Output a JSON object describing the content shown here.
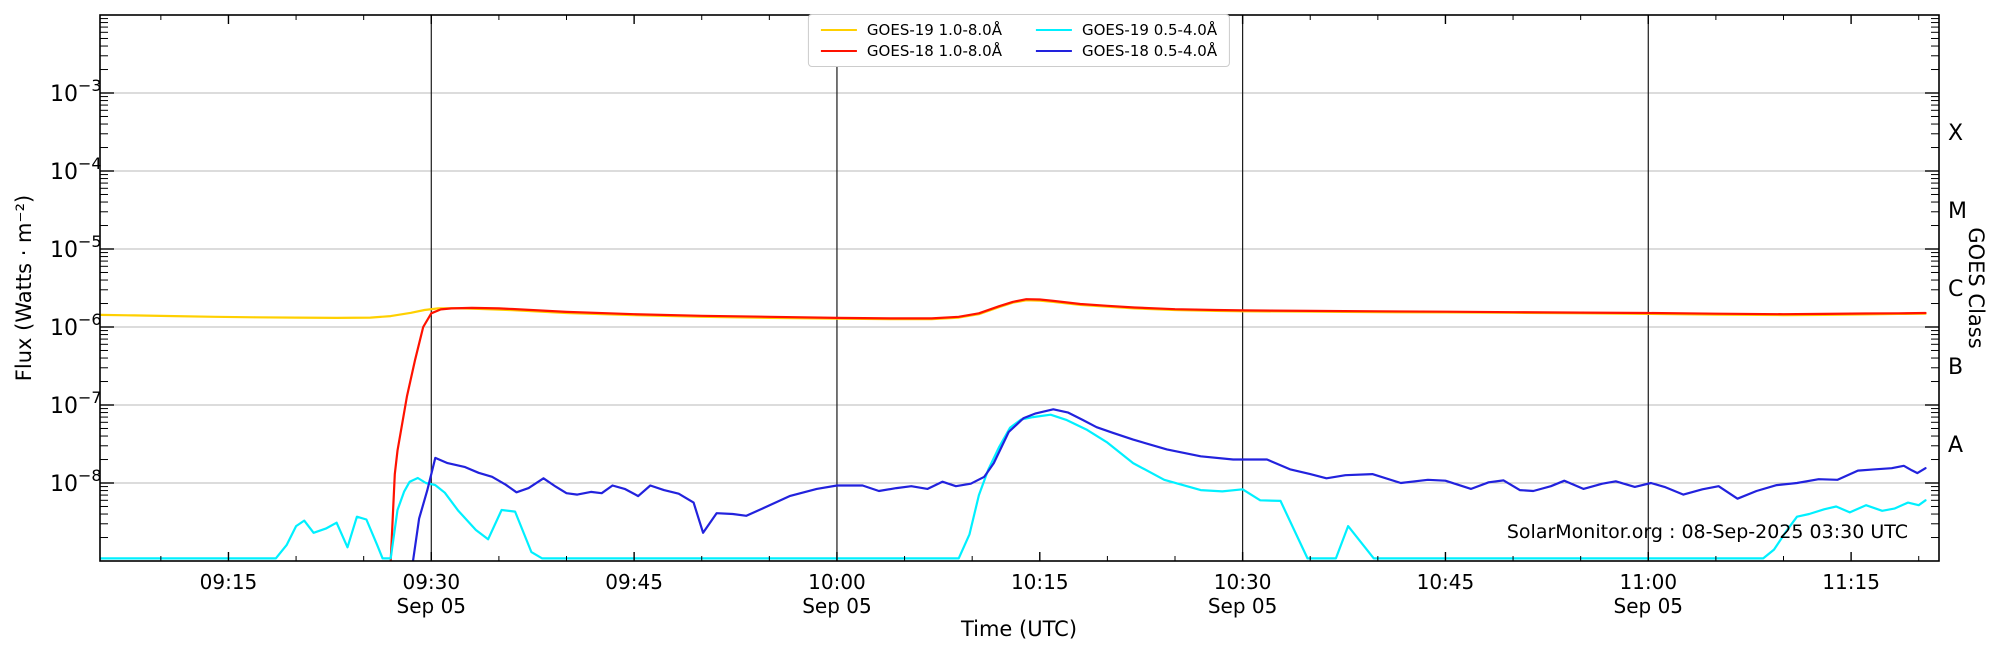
{
  "watermark": "SolarMonitor.org : 08-Sep-2025 03:30 UTC",
  "chart_data": {
    "type": "line",
    "x_axis": {
      "label": "Time (UTC)",
      "unit": "minutes after 09:00 UTC",
      "range": [
        5.5,
        141.5
      ],
      "date_label": "Sep 05",
      "major_ticks": [
        {
          "t": 15,
          "label": "09:15"
        },
        {
          "t": 30,
          "label": "09:30",
          "date": "Sep 05"
        },
        {
          "t": 45,
          "label": "09:45"
        },
        {
          "t": 60,
          "label": "10:00",
          "date": "Sep 05"
        },
        {
          "t": 75,
          "label": "10:15"
        },
        {
          "t": 90,
          "label": "10:30",
          "date": "Sep 05"
        },
        {
          "t": 105,
          "label": "10:45"
        },
        {
          "t": 120,
          "label": "11:00",
          "date": "Sep 05"
        },
        {
          "t": 135,
          "label": "11:15"
        }
      ],
      "minor_tick_step": 5,
      "vertical_gridlines": [
        30,
        60,
        90,
        120
      ]
    },
    "y_axis": {
      "label": "Flux (Watts · m⁻²)",
      "scale": "log",
      "range": [
        1e-09,
        0.01
      ],
      "tick_exponents": [
        -3,
        -4,
        -5,
        -6,
        -7,
        -8
      ]
    },
    "right_axis": {
      "label": "GOES Class",
      "classes": [
        {
          "label": "X",
          "mid_exponent": -3.5
        },
        {
          "label": "M",
          "mid_exponent": -4.5
        },
        {
          "label": "C",
          "mid_exponent": -5.5
        },
        {
          "label": "B",
          "mid_exponent": -6.5
        },
        {
          "label": "A",
          "mid_exponent": -7.5
        }
      ]
    },
    "grid_color": "#b9b9b9",
    "vertical_line_color": "#1a1a1a",
    "series": [
      {
        "name": "GOES-19 1.0-8.0Å",
        "color": "#ffd000",
        "points": [
          [
            5.5,
            1.43e-06
          ],
          [
            8,
            1.41e-06
          ],
          [
            11,
            1.38e-06
          ],
          [
            14,
            1.35e-06
          ],
          [
            17,
            1.33e-06
          ],
          [
            20,
            1.32e-06
          ],
          [
            23,
            1.31e-06
          ],
          [
            25.5,
            1.32e-06
          ],
          [
            27,
            1.38e-06
          ],
          [
            28.5,
            1.52e-06
          ],
          [
            29.5,
            1.65e-06
          ],
          [
            30.5,
            1.73e-06
          ],
          [
            31.5,
            1.74e-06
          ],
          [
            33,
            1.72e-06
          ],
          [
            36,
            1.64e-06
          ],
          [
            40,
            1.51e-06
          ],
          [
            45,
            1.42e-06
          ],
          [
            50,
            1.35e-06
          ],
          [
            55,
            1.31e-06
          ],
          [
            60,
            1.28e-06
          ],
          [
            64,
            1.26e-06
          ],
          [
            67,
            1.26e-06
          ],
          [
            69,
            1.32e-06
          ],
          [
            70.5,
            1.46e-06
          ],
          [
            72,
            1.8e-06
          ],
          [
            73,
            2.05e-06
          ],
          [
            74,
            2.2e-06
          ],
          [
            75,
            2.18e-06
          ],
          [
            76,
            2.1e-06
          ],
          [
            78,
            1.92e-06
          ],
          [
            80,
            1.82e-06
          ],
          [
            82,
            1.73e-06
          ],
          [
            85,
            1.65e-06
          ],
          [
            88,
            1.61e-06
          ],
          [
            90,
            1.59e-06
          ],
          [
            95,
            1.57e-06
          ],
          [
            100,
            1.55e-06
          ],
          [
            105,
            1.54e-06
          ],
          [
            110,
            1.52e-06
          ],
          [
            115,
            1.5e-06
          ],
          [
            120,
            1.47e-06
          ],
          [
            125,
            1.44e-06
          ],
          [
            130,
            1.42e-06
          ],
          [
            133,
            1.43e-06
          ],
          [
            136,
            1.45e-06
          ],
          [
            138.5,
            1.47e-06
          ],
          [
            140.5,
            1.48e-06
          ]
        ]
      },
      {
        "name": "GOES-18 1.0-8.0Å",
        "color": "#ff1200",
        "points": [
          [
            27.0,
            1e-09
          ],
          [
            27.3,
            1.3e-08
          ],
          [
            27.5,
            2.6e-08
          ],
          [
            28.2,
            1.3e-07
          ],
          [
            28.8,
            3.8e-07
          ],
          [
            29.4,
            1e-06
          ],
          [
            30.0,
            1.5e-06
          ],
          [
            30.7,
            1.68e-06
          ],
          [
            31.5,
            1.73e-06
          ],
          [
            33,
            1.76e-06
          ],
          [
            35,
            1.73e-06
          ],
          [
            36,
            1.7e-06
          ],
          [
            40,
            1.56e-06
          ],
          [
            45,
            1.46e-06
          ],
          [
            50,
            1.39e-06
          ],
          [
            55,
            1.35e-06
          ],
          [
            60,
            1.31e-06
          ],
          [
            64,
            1.29e-06
          ],
          [
            67,
            1.29e-06
          ],
          [
            69,
            1.35e-06
          ],
          [
            70.5,
            1.5e-06
          ],
          [
            72,
            1.85e-06
          ],
          [
            73,
            2.1e-06
          ],
          [
            74,
            2.27e-06
          ],
          [
            75,
            2.25e-06
          ],
          [
            76,
            2.16e-06
          ],
          [
            78,
            1.97e-06
          ],
          [
            80,
            1.87e-06
          ],
          [
            82,
            1.78e-06
          ],
          [
            85,
            1.69e-06
          ],
          [
            88,
            1.65e-06
          ],
          [
            90,
            1.63e-06
          ],
          [
            95,
            1.61e-06
          ],
          [
            100,
            1.59e-06
          ],
          [
            105,
            1.57e-06
          ],
          [
            110,
            1.55e-06
          ],
          [
            115,
            1.53e-06
          ],
          [
            120,
            1.51e-06
          ],
          [
            125,
            1.48e-06
          ],
          [
            130,
            1.46e-06
          ],
          [
            133,
            1.47e-06
          ],
          [
            136,
            1.49e-06
          ],
          [
            138.5,
            1.5e-06
          ],
          [
            140.5,
            1.51e-06
          ]
        ]
      },
      {
        "name": "GOES-19 0.5-4.0Å",
        "color": "#00f0ff",
        "points": [
          [
            5.5,
            1.08e-09
          ],
          [
            18.5,
            1.08e-09
          ],
          [
            19.3,
            1.6e-09
          ],
          [
            20,
            2.8e-09
          ],
          [
            20.6,
            3.3e-09
          ],
          [
            21.3,
            2.3e-09
          ],
          [
            22.2,
            2.6e-09
          ],
          [
            23,
            3.1e-09
          ],
          [
            23.8,
            1.5e-09
          ],
          [
            24.5,
            3.7e-09
          ],
          [
            25.2,
            3.4e-09
          ],
          [
            26,
            1.6e-09
          ],
          [
            26.4,
            1.08e-09
          ],
          [
            27,
            1.08e-09
          ],
          [
            27.5,
            4.5e-09
          ],
          [
            28,
            7.8e-09
          ],
          [
            28.4,
            1.04e-08
          ],
          [
            29,
            1.16e-08
          ],
          [
            29.6,
            1e-08
          ],
          [
            30.3,
            9.4e-09
          ],
          [
            31,
            7.5e-09
          ],
          [
            32,
            4.4e-09
          ],
          [
            33.3,
            2.5e-09
          ],
          [
            34.2,
            1.9e-09
          ],
          [
            35.2,
            4.5e-09
          ],
          [
            36.2,
            4.3e-09
          ],
          [
            37.4,
            1.3e-09
          ],
          [
            38.2,
            1.08e-09
          ],
          [
            69,
            1.08e-09
          ],
          [
            69.8,
            2.2e-09
          ],
          [
            70.5,
            7e-09
          ],
          [
            71.2,
            1.5e-08
          ],
          [
            72,
            2.9e-08
          ],
          [
            72.8,
            5.1e-08
          ],
          [
            73.6,
            6.5e-08
          ],
          [
            74.5,
            7e-08
          ],
          [
            75.8,
            7.5e-08
          ],
          [
            77,
            6.4e-08
          ],
          [
            78.5,
            4.8e-08
          ],
          [
            80,
            3.3e-08
          ],
          [
            81.9,
            1.8e-08
          ],
          [
            84.2,
            1.1e-08
          ],
          [
            86.9,
            8.1e-09
          ],
          [
            88.5,
            7.8e-09
          ],
          [
            90,
            8.3e-09
          ],
          [
            91.3,
            6e-09
          ],
          [
            92.8,
            5.9e-09
          ],
          [
            94.8,
            1.08e-09
          ],
          [
            96.9,
            1.08e-09
          ],
          [
            97.8,
            2.8e-09
          ],
          [
            99.7,
            1.08e-09
          ],
          [
            128.5,
            1.08e-09
          ],
          [
            129.3,
            1.4e-09
          ],
          [
            130.2,
            2.4e-09
          ],
          [
            131,
            3.7e-09
          ],
          [
            131.9,
            4e-09
          ],
          [
            133,
            4.6e-09
          ],
          [
            133.9,
            5e-09
          ],
          [
            134.9,
            4.2e-09
          ],
          [
            136.1,
            5.2e-09
          ],
          [
            137.3,
            4.4e-09
          ],
          [
            138.2,
            4.7e-09
          ],
          [
            139.2,
            5.6e-09
          ],
          [
            140,
            5.2e-09
          ],
          [
            140.5,
            6e-09
          ]
        ]
      },
      {
        "name": "GOES-18 0.5-4.0Å",
        "color": "#2222dd",
        "points": [
          [
            28.65,
            1e-09
          ],
          [
            29.1,
            3.5e-09
          ],
          [
            29.7,
            8e-09
          ],
          [
            30.3,
            2.1e-08
          ],
          [
            31.2,
            1.8e-08
          ],
          [
            32.5,
            1.6e-08
          ],
          [
            33.5,
            1.35e-08
          ],
          [
            34.5,
            1.2e-08
          ],
          [
            35.5,
            9.5e-09
          ],
          [
            36.3,
            7.6e-09
          ],
          [
            37.2,
            8.6e-09
          ],
          [
            38.3,
            1.15e-08
          ],
          [
            39.2,
            9e-09
          ],
          [
            40,
            7.4e-09
          ],
          [
            40.8,
            7.1e-09
          ],
          [
            41.8,
            7.7e-09
          ],
          [
            42.6,
            7.4e-09
          ],
          [
            43.4,
            9.3e-09
          ],
          [
            44.3,
            8.4e-09
          ],
          [
            45.3,
            6.8e-09
          ],
          [
            46.2,
            9.3e-09
          ],
          [
            47.2,
            8.1e-09
          ],
          [
            48.3,
            7.3e-09
          ],
          [
            49.4,
            5.6e-09
          ],
          [
            50.1,
            2.3e-09
          ],
          [
            51.1,
            4.1e-09
          ],
          [
            52.3,
            4e-09
          ],
          [
            53.3,
            3.8e-09
          ],
          [
            54.6,
            4.8e-09
          ],
          [
            56.5,
            6.8e-09
          ],
          [
            58.5,
            8.4e-09
          ],
          [
            60,
            9.3e-09
          ],
          [
            61.9,
            9.3e-09
          ],
          [
            63.1,
            7.9e-09
          ],
          [
            64.4,
            8.6e-09
          ],
          [
            65.5,
            9.1e-09
          ],
          [
            66.7,
            8.4e-09
          ],
          [
            67.8,
            1.04e-08
          ],
          [
            68.8,
            9.1e-09
          ],
          [
            69.9,
            9.8e-09
          ],
          [
            70.9,
            1.2e-08
          ],
          [
            71.6,
            1.8e-08
          ],
          [
            72.7,
            4.5e-08
          ],
          [
            73.8,
            6.8e-08
          ],
          [
            74.7,
            7.8e-08
          ],
          [
            76,
            8.8e-08
          ],
          [
            77.1,
            8e-08
          ],
          [
            78.2,
            6.4e-08
          ],
          [
            79.2,
            5.2e-08
          ],
          [
            80.4,
            4.4e-08
          ],
          [
            81.9,
            3.6e-08
          ],
          [
            84.4,
            2.7e-08
          ],
          [
            86.9,
            2.2e-08
          ],
          [
            89.3,
            2e-08
          ],
          [
            91.8,
            2e-08
          ],
          [
            93.5,
            1.5e-08
          ],
          [
            95,
            1.3e-08
          ],
          [
            96.2,
            1.15e-08
          ],
          [
            97.6,
            1.26e-08
          ],
          [
            99.6,
            1.3e-08
          ],
          [
            101.7,
            1e-08
          ],
          [
            103.7,
            1.1e-08
          ],
          [
            105,
            1.07e-08
          ],
          [
            106.9,
            8.4e-09
          ],
          [
            108.2,
            1.02e-08
          ],
          [
            109.3,
            1.08e-08
          ],
          [
            110.5,
            8.1e-09
          ],
          [
            111.5,
            7.9e-09
          ],
          [
            112.8,
            9.1e-09
          ],
          [
            113.8,
            1.07e-08
          ],
          [
            115.2,
            8.4e-09
          ],
          [
            116.6,
            9.8e-09
          ],
          [
            117.6,
            1.05e-08
          ],
          [
            119,
            8.9e-09
          ],
          [
            120.2,
            1e-08
          ],
          [
            121.2,
            8.9e-09
          ],
          [
            122.6,
            7.1e-09
          ],
          [
            124,
            8.3e-09
          ],
          [
            125.2,
            9.1e-09
          ],
          [
            126.6,
            6.3e-09
          ],
          [
            128,
            7.9e-09
          ],
          [
            129.5,
            9.4e-09
          ],
          [
            131,
            1e-08
          ],
          [
            132.6,
            1.12e-08
          ],
          [
            134,
            1.1e-08
          ],
          [
            135.5,
            1.44e-08
          ],
          [
            136.8,
            1.5e-08
          ],
          [
            138,
            1.55e-08
          ],
          [
            138.9,
            1.66e-08
          ],
          [
            139.5,
            1.45e-08
          ],
          [
            139.9,
            1.34e-08
          ],
          [
            140.5,
            1.55e-08
          ]
        ]
      }
    ]
  }
}
